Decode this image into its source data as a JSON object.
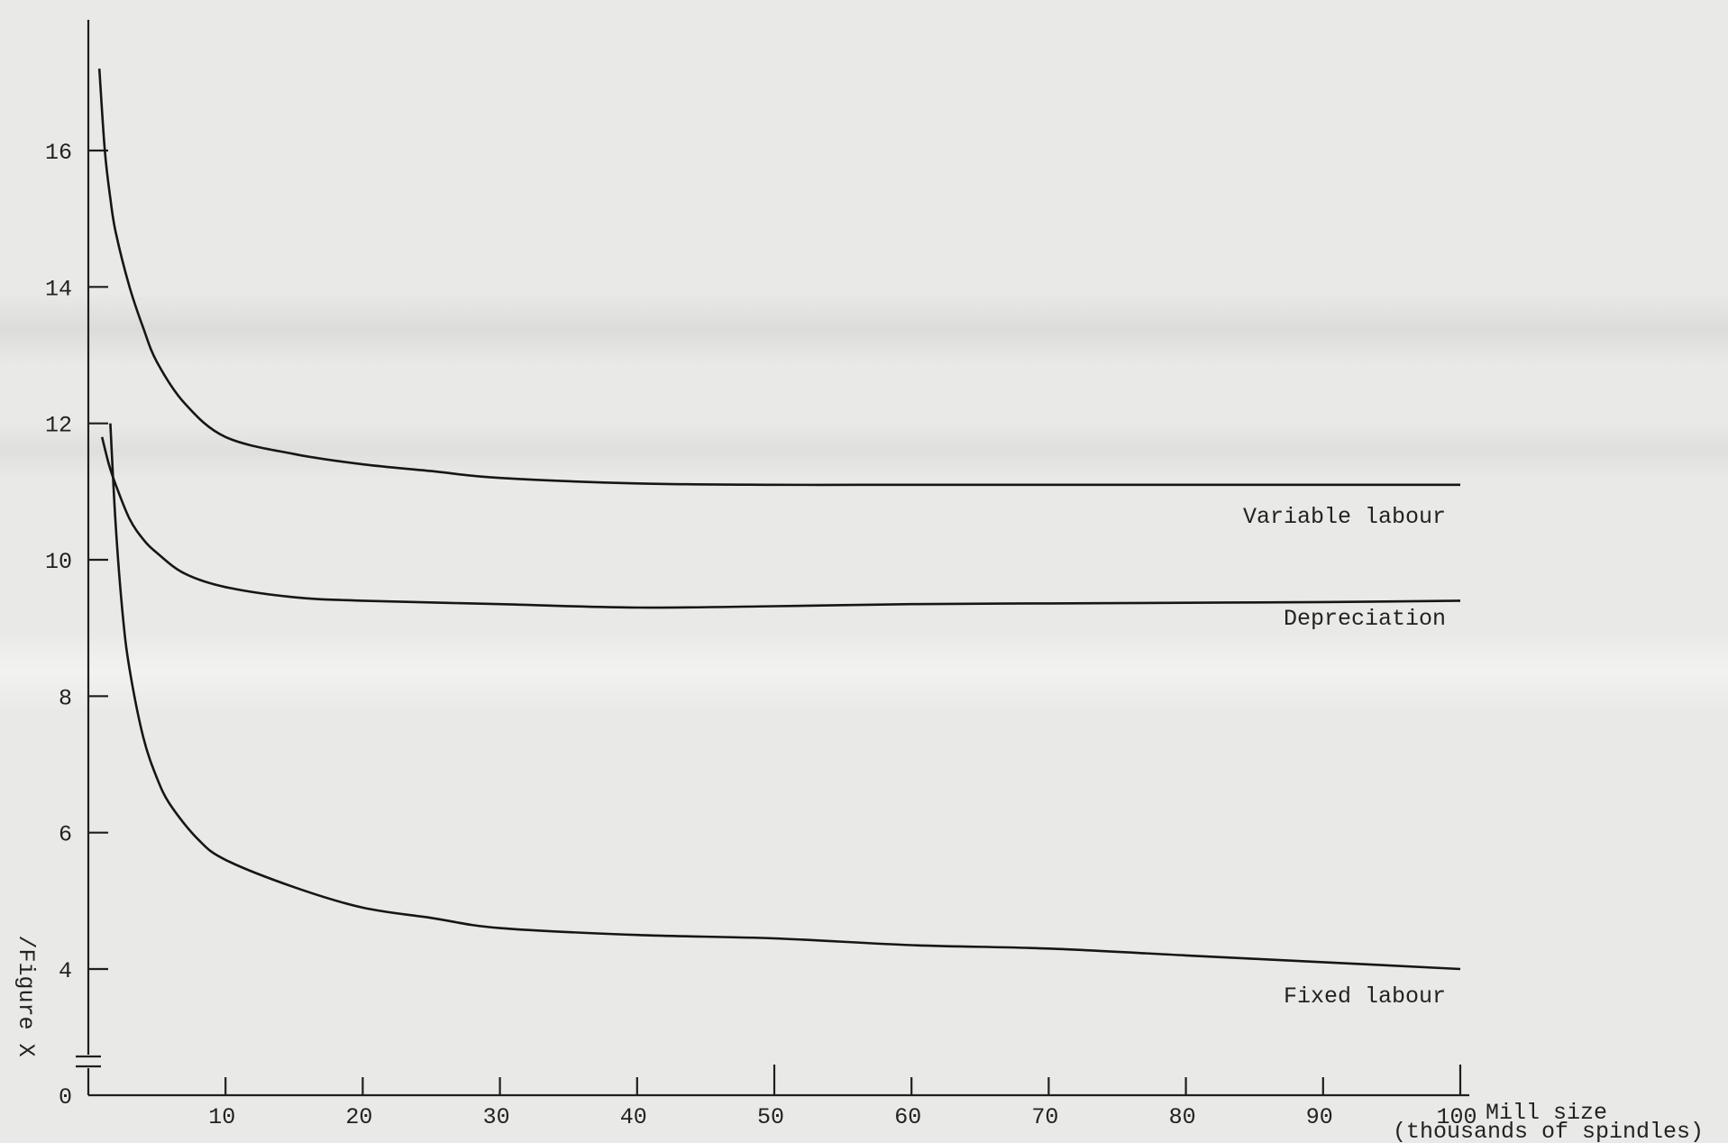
{
  "chart_data": {
    "type": "line",
    "title": "",
    "xlabel": "Mill size",
    "xlabel_line2": "(thousands of spindles)",
    "ylabel": "Figure X",
    "ylabel_prefix": "/",
    "xlim": [
      0,
      100
    ],
    "ylim": [
      0,
      17.5
    ],
    "axis_break_y": true,
    "grid": false,
    "x_ticks": [
      10,
      20,
      30,
      40,
      50,
      60,
      70,
      80,
      90,
      100
    ],
    "x_tick_labels": [
      "10",
      "20",
      "30",
      "40",
      "50",
      "60",
      "70",
      "80",
      "90",
      "100"
    ],
    "y_ticks": [
      0,
      4,
      6,
      8,
      10,
      12,
      14,
      16
    ],
    "y_tick_labels": [
      "0",
      "4",
      "6",
      "8",
      "10",
      "12",
      "14",
      "16"
    ],
    "series": [
      {
        "name": "Variable labour",
        "x": [
          0.8,
          1.2,
          1.6,
          2,
          3,
          4,
          5,
          7,
          10,
          15,
          20,
          25,
          30,
          40,
          50,
          60,
          70,
          80,
          90,
          100
        ],
        "y": [
          17.2,
          16,
          15.3,
          14.8,
          14,
          13.4,
          12.9,
          12.3,
          11.8,
          11.55,
          11.4,
          11.3,
          11.2,
          11.12,
          11.1,
          11.1,
          11.1,
          11.1,
          11.1,
          11.1
        ]
      },
      {
        "name": "Depreciation",
        "x": [
          1,
          1.5,
          2,
          3,
          4,
          5,
          7,
          10,
          15,
          20,
          30,
          40,
          50,
          60,
          70,
          80,
          90,
          100
        ],
        "y": [
          11.8,
          11.4,
          11.1,
          10.6,
          10.3,
          10.1,
          9.8,
          9.6,
          9.45,
          9.4,
          9.35,
          9.3,
          9.32,
          9.35,
          9.36,
          9.37,
          9.38,
          9.4
        ]
      },
      {
        "name": "Fixed labour",
        "x": [
          1.6,
          2,
          2.5,
          3,
          4,
          5,
          6,
          8,
          10,
          15,
          20,
          25,
          30,
          40,
          50,
          60,
          70,
          80,
          90,
          100
        ],
        "y": [
          12,
          10.5,
          9.2,
          8.4,
          7.4,
          6.8,
          6.4,
          5.9,
          5.6,
          5.2,
          4.9,
          4.75,
          4.6,
          4.5,
          4.45,
          4.35,
          4.3,
          4.2,
          4.1,
          4.0
        ]
      }
    ]
  }
}
